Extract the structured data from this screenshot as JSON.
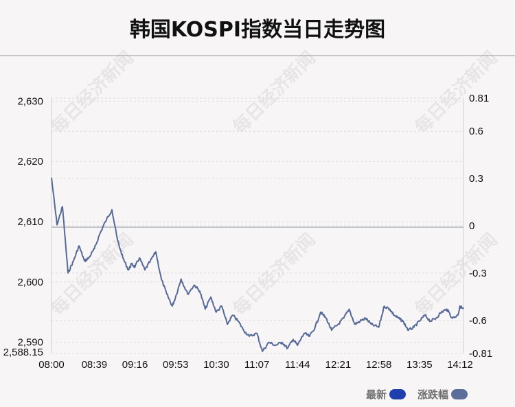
{
  "title": "韩国KOSPI指数当日走势图",
  "legend": {
    "latest_label": "最新",
    "latest_color": "#1f3fae",
    "change_label": "涨跌幅",
    "change_color": "#5b6f9a"
  },
  "watermark": "每日经济新闻",
  "colors": {
    "line": "#556a96",
    "baseline": "#c4c4cc",
    "grid": "#dcdcdc",
    "axis": "#d0d0d0"
  },
  "chart_data": {
    "type": "line",
    "title": "韩国KOSPI指数当日走势图",
    "left_axis": {
      "ticks": [
        "2,630",
        "2,620",
        "2,610",
        "2,600",
        "2,590",
        "2,588.15"
      ],
      "min": 2588.15,
      "max": 2630.5
    },
    "right_axis": {
      "ticks": [
        "0.81",
        "0.6",
        "0.3",
        "0",
        "-0.3",
        "-0.6",
        "-0.81"
      ],
      "min": -0.81,
      "max": 0.81
    },
    "x_ticks": [
      "08:00",
      "08:39",
      "09:16",
      "09:53",
      "10:30",
      "11:07",
      "11:44",
      "12:21",
      "12:58",
      "13:35",
      "14:12"
    ],
    "baseline": 2609.1,
    "grid": true,
    "series": [
      {
        "x": [
          "08:00",
          "08:05",
          "08:10",
          "08:15",
          "08:20",
          "08:25",
          "08:30",
          "08:34",
          "08:39",
          "08:44",
          "08:49",
          "08:55",
          "09:00",
          "09:05",
          "09:10",
          "09:13",
          "09:16",
          "09:20",
          "09:25",
          "09:30",
          "09:35",
          "09:40",
          "09:45",
          "09:50",
          "09:53",
          "09:58",
          "10:04",
          "10:10",
          "10:15",
          "10:20",
          "10:25",
          "10:30",
          "10:35",
          "10:40",
          "10:45",
          "10:50",
          "10:55",
          "11:00",
          "11:07",
          "11:12",
          "11:18",
          "11:24",
          "11:30",
          "11:35",
          "11:40",
          "11:44",
          "11:50",
          "11:55",
          "12:00",
          "12:05",
          "12:10",
          "12:15",
          "12:21",
          "12:26",
          "12:31",
          "12:36",
          "12:41",
          "12:46",
          "12:51",
          "12:58",
          "13:03",
          "13:08",
          "13:12",
          "13:16",
          "13:20",
          "13:25",
          "13:30",
          "13:35",
          "13:40",
          "13:45",
          "13:50",
          "13:55",
          "14:00",
          "14:05",
          "14:10",
          "14:12",
          "14:15"
        ],
        "values": [
          2617.3,
          2609.5,
          2612.5,
          2601.5,
          2603.5,
          2606,
          2603.5,
          2604,
          2605.5,
          2608,
          2610,
          2612,
          2607,
          2604,
          2602,
          2603,
          2602.5,
          2604,
          2602,
          2603.5,
          2605,
          2600.5,
          2598,
          2596,
          2597.5,
          2600.5,
          2598,
          2599.5,
          2598.5,
          2595.5,
          2597.5,
          2595,
          2596,
          2593,
          2594.5,
          2593.5,
          2592,
          2591,
          2591.5,
          2588.5,
          2590,
          2589.5,
          2590,
          2589,
          2590.5,
          2589.5,
          2591.5,
          2591,
          2592.5,
          2595,
          2594,
          2592,
          2593,
          2594,
          2595.5,
          2593,
          2593.5,
          2594,
          2593,
          2592.5,
          2596,
          2595.5,
          2594.5,
          2594,
          2593.5,
          2592,
          2592.5,
          2593.5,
          2594.5,
          2593.5,
          2594,
          2595,
          2595.5,
          2594,
          2594.5,
          2596,
          2595.5
        ]
      }
    ]
  }
}
